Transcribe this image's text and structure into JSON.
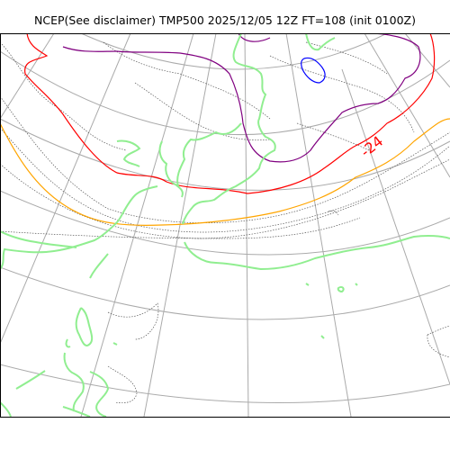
{
  "title": "NCEP(See disclaimer) TMP500 2025/12/05 12Z FT=108 (init 0100Z)",
  "contour_labels": [
    {
      "text": "-24",
      "level": -24
    }
  ],
  "colors": {
    "graticule": "#aaaaaa",
    "coastline": "#90ee90",
    "minor_isotherm": "#555555",
    "isotherm_minus_24": "#ff0000",
    "isotherm_minus_18": "#ffa500",
    "isotherm_minus_30": "#800080",
    "isotherm_minus_36": "#0000ff",
    "frame": "#000000"
  }
}
